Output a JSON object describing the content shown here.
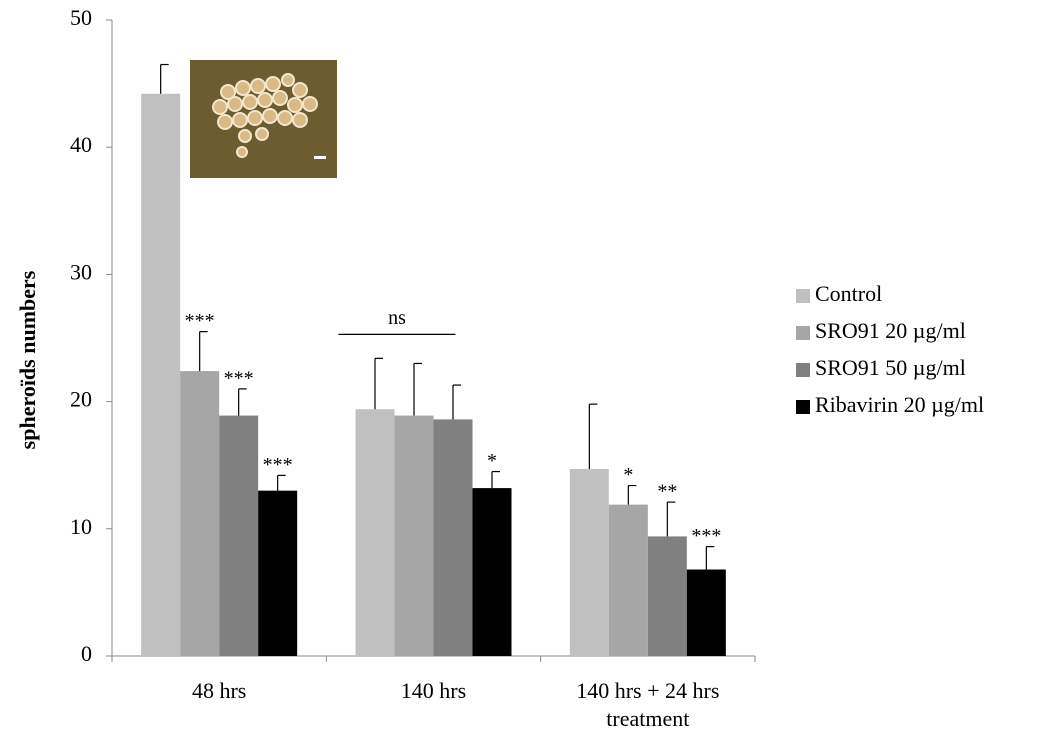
{
  "chart_data": {
    "type": "bar",
    "y_label": "spheroïds numbers",
    "categories": [
      "48 hrs",
      "140 hrs",
      "140 hrs + 24 hrs treatment"
    ],
    "series": [
      {
        "name": "Control",
        "color": "#c0c0c0",
        "values": [
          44.2,
          19.4,
          14.7
        ],
        "errors": [
          2.3,
          4.0,
          5.1
        ],
        "labels": [
          null,
          null,
          null
        ]
      },
      {
        "name": "SRO91 20 µg/ml",
        "color": "#a6a6a6",
        "values": [
          22.4,
          18.9,
          11.9
        ],
        "errors": [
          3.1,
          4.1,
          1.5
        ],
        "labels": [
          "***",
          null,
          "*"
        ]
      },
      {
        "name": "SRO91 50 µg/ml",
        "color": "#808080",
        "values": [
          18.9,
          18.6,
          9.4
        ],
        "errors": [
          2.1,
          2.7,
          2.7
        ],
        "labels": [
          "***",
          null,
          "**"
        ]
      },
      {
        "name": "Ribavirin 20 µg/ml",
        "color": "#000000",
        "values": [
          13.0,
          13.2,
          6.8
        ],
        "errors": [
          1.2,
          1.3,
          1.8
        ],
        "labels": [
          "***",
          "*",
          "***"
        ]
      }
    ],
    "annotations": [
      {
        "text": "ns",
        "category": 1
      }
    ],
    "ylim": [
      0,
      50
    ],
    "yticks": [
      0,
      10,
      20,
      30,
      40,
      50
    ],
    "grid": false,
    "legend": "right"
  }
}
